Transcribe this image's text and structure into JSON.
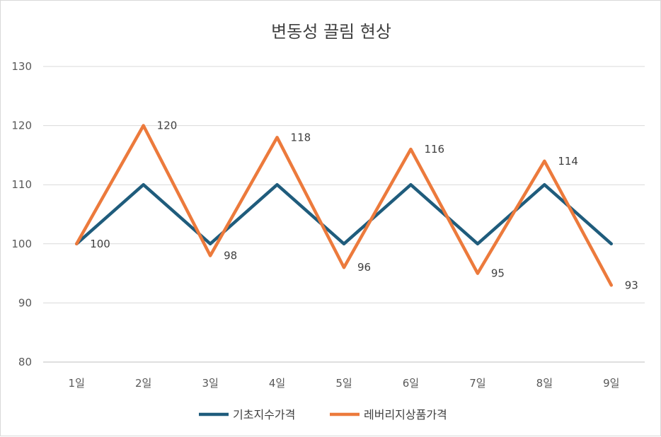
{
  "chart_data": {
    "type": "line",
    "title": "변동성 끌림 현상",
    "xlabel": "",
    "ylabel": "",
    "categories": [
      "1일",
      "2일",
      "3일",
      "4일",
      "5일",
      "6일",
      "7일",
      "8일",
      "9일"
    ],
    "ylim": [
      80,
      130
    ],
    "yticks": [
      "80",
      "90",
      "100",
      "110",
      "120",
      "130"
    ],
    "ytick_values": [
      80,
      90,
      100,
      110,
      120,
      130
    ],
    "grid": true,
    "legend_position": "bottom",
    "series": [
      {
        "name": "기초지수가격",
        "color": "#1f5c7c",
        "values": [
          100,
          110,
          100,
          110,
          100,
          110,
          100,
          110,
          100
        ],
        "labels": []
      },
      {
        "name": "레버리지상품가격",
        "color": "#ec7a3c",
        "values": [
          100,
          120,
          98,
          118,
          96,
          116,
          95,
          114,
          93
        ],
        "labels": [
          "100",
          "120",
          "98",
          "118",
          "96",
          "116",
          "95",
          "114",
          "93"
        ]
      }
    ]
  }
}
